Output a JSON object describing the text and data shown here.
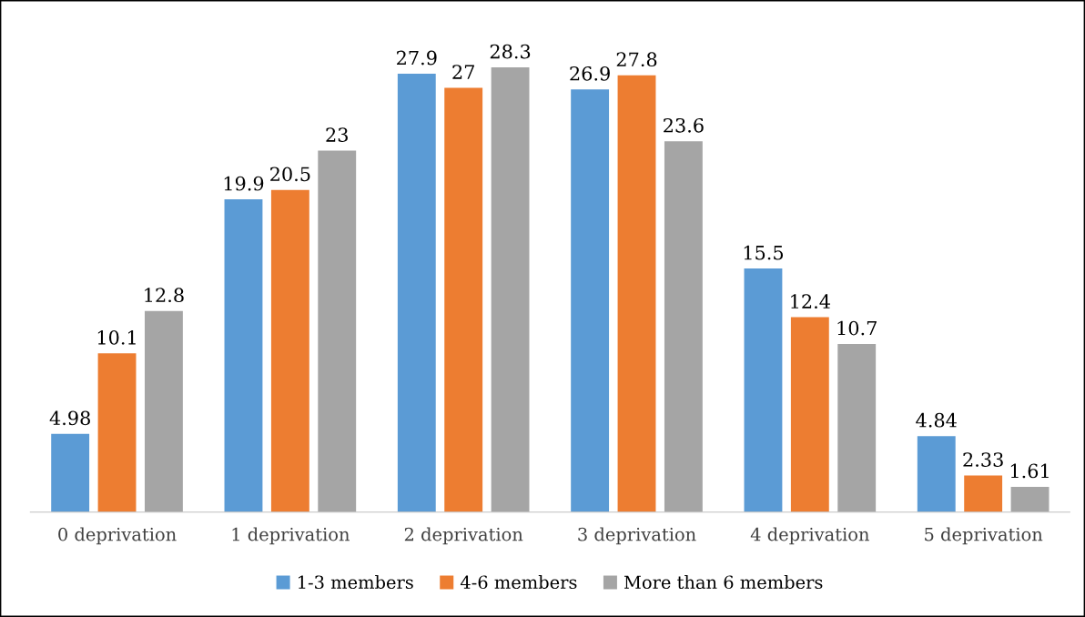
{
  "chart_data": {
    "type": "bar",
    "categories": [
      "0 deprivation",
      "1 deprivation",
      "2 deprivation",
      "3 deprivation",
      "4 deprivation",
      "5 deprivation"
    ],
    "series": [
      {
        "name": "1-3 members",
        "color": "#5b9bd5",
        "values": [
          4.98,
          19.9,
          27.9,
          26.9,
          15.5,
          4.84
        ]
      },
      {
        "name": "4-6 members",
        "color": "#ed7d31",
        "values": [
          10.1,
          20.5,
          27,
          27.8,
          12.4,
          2.33
        ]
      },
      {
        "name": "More than 6 members",
        "color": "#a5a5a5",
        "values": [
          12.8,
          23,
          28.3,
          23.6,
          10.7,
          1.61
        ]
      }
    ],
    "data_labels": true,
    "legend": "bottom",
    "grid": false,
    "tick_labels": "x"
  }
}
